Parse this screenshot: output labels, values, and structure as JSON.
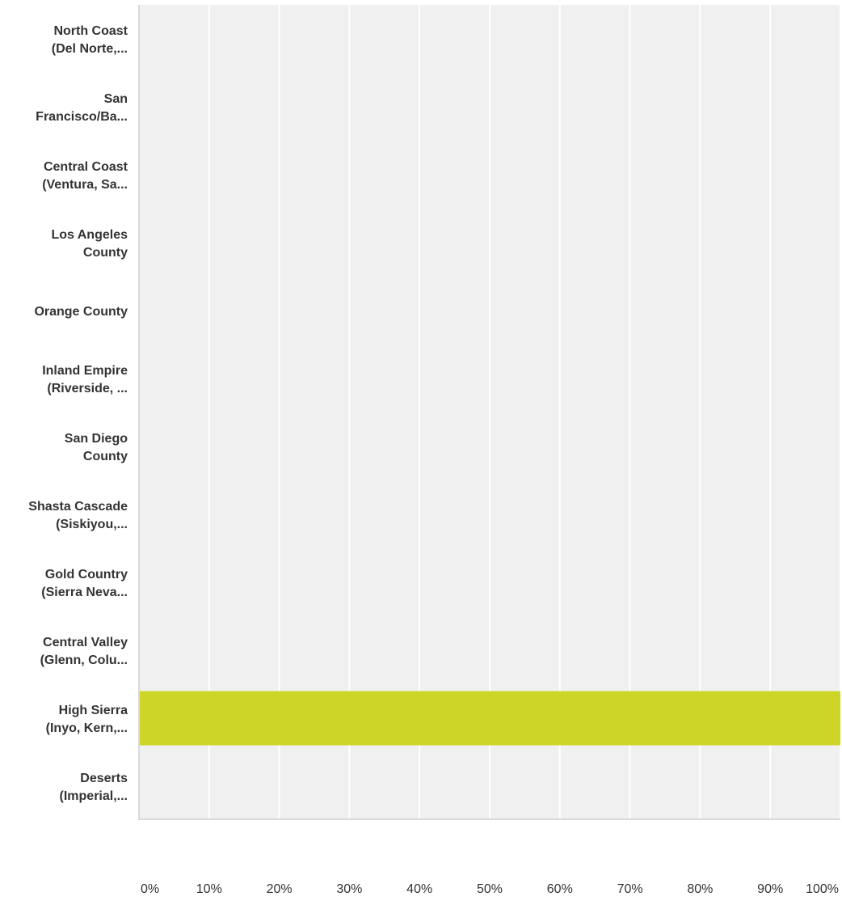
{
  "chart_data": {
    "type": "bar",
    "orientation": "horizontal",
    "categories": [
      [
        "North Coast",
        "(Del Norte,..."
      ],
      [
        "San",
        "Francisco/Ba..."
      ],
      [
        "Central Coast",
        "(Ventura, Sa..."
      ],
      [
        "Los Angeles",
        "County"
      ],
      [
        "Orange County"
      ],
      [
        "Inland Empire",
        "(Riverside, ..."
      ],
      [
        "San Diego",
        "County"
      ],
      [
        "Shasta Cascade",
        "(Siskiyou,..."
      ],
      [
        "Gold Country",
        "(Sierra Neva..."
      ],
      [
        "Central Valley",
        "(Glenn, Colu..."
      ],
      [
        "High Sierra",
        "(Inyo, Kern,..."
      ],
      [
        "Deserts",
        "(Imperial,..."
      ]
    ],
    "values": [
      0,
      0,
      0,
      0,
      0,
      0,
      0,
      0,
      0,
      0,
      100,
      0
    ],
    "xlim": [
      0,
      100
    ],
    "ticks": [
      0,
      10,
      20,
      30,
      40,
      50,
      60,
      70,
      80,
      90,
      100
    ],
    "tick_labels": [
      "0%",
      "10%",
      "20%",
      "30%",
      "40%",
      "50%",
      "60%",
      "70%",
      "80%",
      "90%",
      "100%"
    ],
    "grid": true,
    "colors": {
      "bar": "#cdd626",
      "plot_background": "#f0f0f0",
      "gridline": "#ffffff",
      "axis": "#d9d9d9",
      "text": "#333333"
    }
  }
}
